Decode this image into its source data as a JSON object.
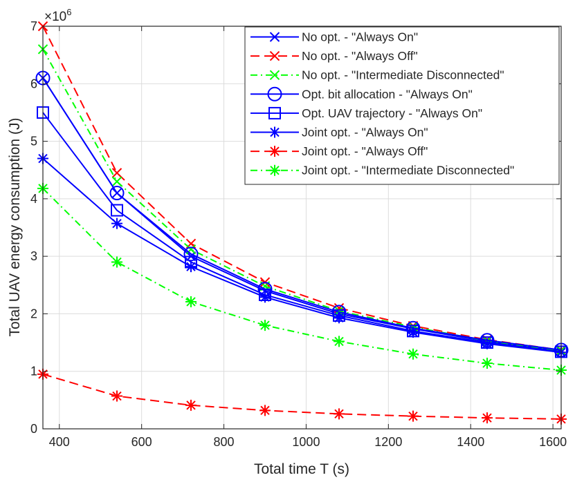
{
  "chart_data": {
    "type": "line",
    "xlabel": "Total time T (s)",
    "ylabel": "Total UAV energy consumption (J)",
    "y_exponent_label": "×10",
    "y_exponent": "6",
    "xlim": [
      360,
      1620
    ],
    "ylim": [
      0,
      7
    ],
    "xticks": [
      "400",
      "600",
      "800",
      "1000",
      "1200",
      "1400",
      "1600"
    ],
    "yticks": [
      "0",
      "1",
      "2",
      "3",
      "4",
      "5",
      "6",
      "7"
    ],
    "grid": true,
    "legend_position": "top-right",
    "x": [
      360,
      540,
      720,
      900,
      1080,
      1260,
      1440,
      1620
    ],
    "series": [
      {
        "name": "No opt. - \"Always On\"",
        "color": "#0000ff",
        "dash": "solid",
        "marker": "x",
        "values": [
          6.1,
          4.1,
          3.0,
          2.4,
          2.0,
          1.74,
          1.52,
          1.35
        ]
      },
      {
        "name": "No opt. - \"Always Off\"",
        "color": "#ff0000",
        "dash": "dashed",
        "marker": "x",
        "values": [
          7.0,
          4.45,
          3.22,
          2.55,
          2.1,
          1.79,
          1.55,
          1.37
        ]
      },
      {
        "name": "No opt. - \"Intermediate Disconnected\"",
        "color": "#00ff00",
        "dash": "dashdot",
        "marker": "x",
        "values": [
          6.6,
          4.3,
          3.12,
          2.48,
          2.05,
          1.77,
          1.53,
          1.36
        ]
      },
      {
        "name": "Opt. bit allocation - \"Always On\"",
        "color": "#0000ff",
        "dash": "solid",
        "marker": "circle",
        "values": [
          6.1,
          4.1,
          3.04,
          2.43,
          2.03,
          1.75,
          1.54,
          1.37
        ]
      },
      {
        "name": "Opt. UAV trajectory - \"Always On\"",
        "color": "#0000ff",
        "dash": "solid",
        "marker": "square",
        "values": [
          5.5,
          3.8,
          2.9,
          2.33,
          1.97,
          1.7,
          1.5,
          1.34
        ]
      },
      {
        "name": "Joint opt. - \"Always On\"",
        "color": "#0000ff",
        "dash": "solid",
        "marker": "star",
        "values": [
          4.7,
          3.57,
          2.82,
          2.29,
          1.93,
          1.68,
          1.48,
          1.33
        ]
      },
      {
        "name": "Joint opt. - \"Always Off\"",
        "color": "#ff0000",
        "dash": "dashed",
        "marker": "star",
        "values": [
          0.95,
          0.57,
          0.41,
          0.32,
          0.26,
          0.22,
          0.19,
          0.17
        ]
      },
      {
        "name": "Joint opt. - \"Intermediate Disconnected\"",
        "color": "#00ff00",
        "dash": "dashdot",
        "marker": "star",
        "values": [
          4.18,
          2.9,
          2.21,
          1.8,
          1.52,
          1.3,
          1.14,
          1.02
        ]
      }
    ]
  }
}
